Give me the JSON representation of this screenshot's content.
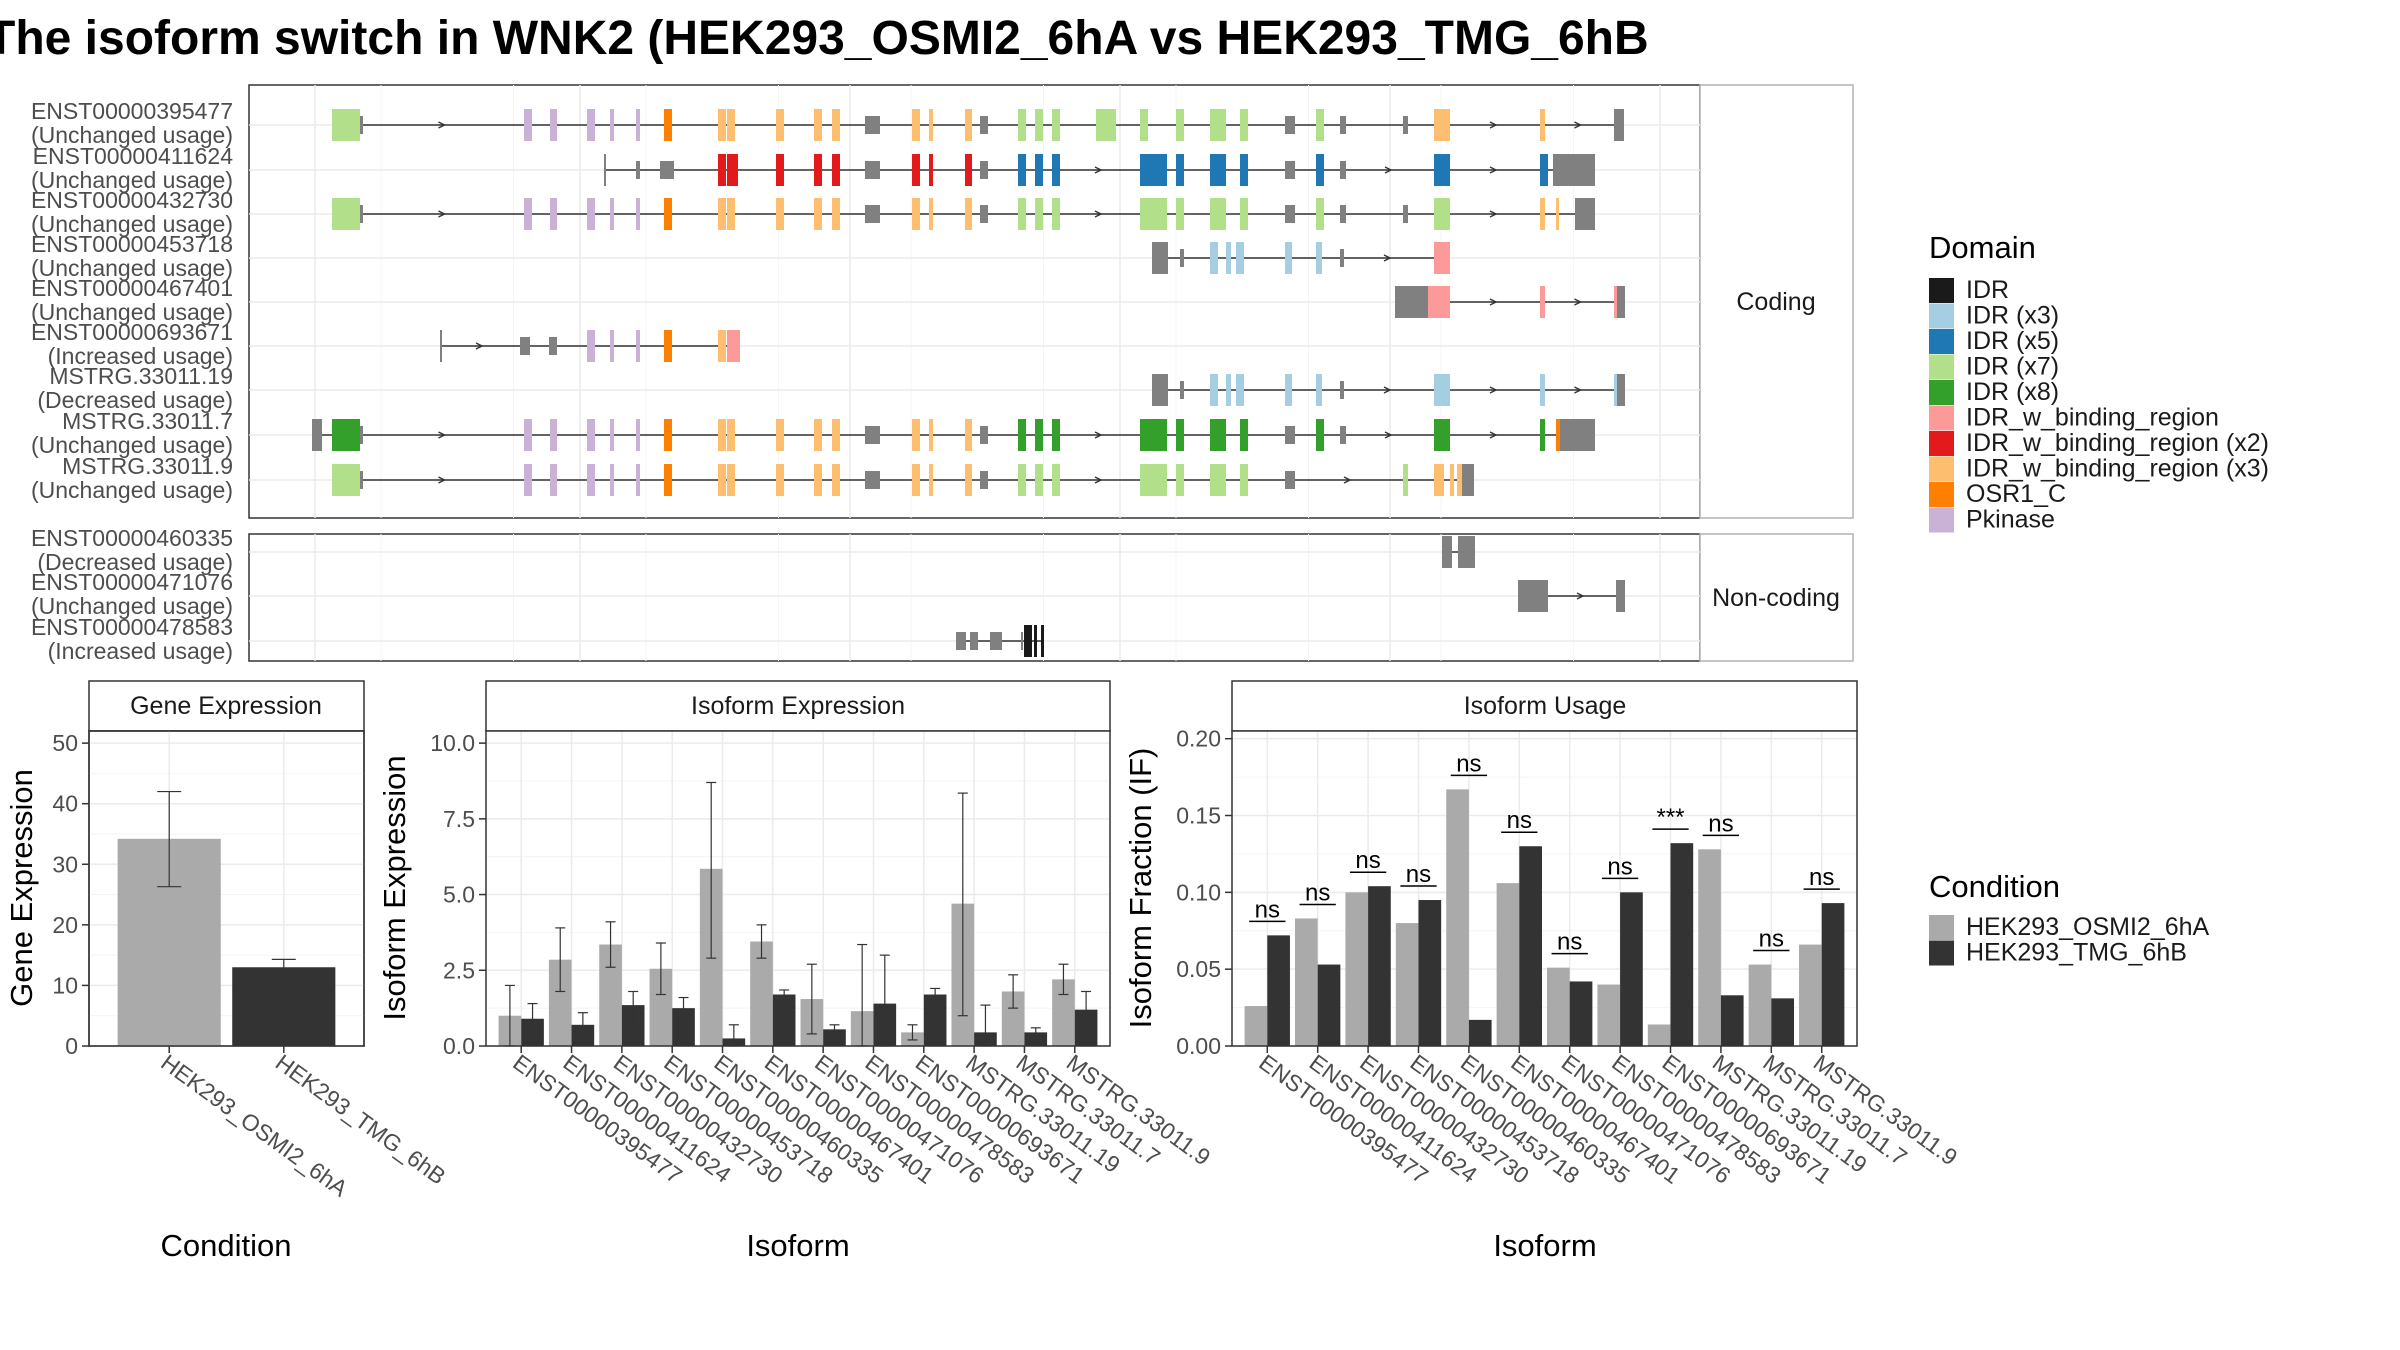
{
  "title": "The isoform switch in WNK2 (HEK293_OSMI2_6hA vs HEK293_TMG_6hB",
  "legends": {
    "domain_title": "Domain",
    "domains": [
      {
        "label": "IDR",
        "color": "#1a1a1a"
      },
      {
        "label": "IDR (x3)",
        "color": "#a6cee3"
      },
      {
        "label": "IDR (x5)",
        "color": "#1f78b4"
      },
      {
        "label": "IDR (x7)",
        "color": "#b2df8a"
      },
      {
        "label": "IDR (x8)",
        "color": "#33a02c"
      },
      {
        "label": "IDR_w_binding_region",
        "color": "#fb9a99"
      },
      {
        "label": "IDR_w_binding_region (x2)",
        "color": "#e31a1c"
      },
      {
        "label": "IDR_w_binding_region (x3)",
        "color": "#fdbf6f"
      },
      {
        "label": "OSR1_C",
        "color": "#ff7f00"
      },
      {
        "label": "Pkinase",
        "color": "#cab2d6"
      }
    ],
    "condition_title": "Condition",
    "conditions": [
      {
        "label": "HEK293_OSMI2_6hA",
        "color": "#aaaaaa"
      },
      {
        "label": "HEK293_TMG_6hB",
        "color": "#333333"
      }
    ]
  },
  "isoform_structure": {
    "coding_strip": "Coding",
    "noncoding_strip": "Non-coding",
    "coding": [
      {
        "id": "ENST00000395477",
        "usage": "(Unchanged usage)"
      },
      {
        "id": "ENST00000411624",
        "usage": "(Unchanged usage)"
      },
      {
        "id": "ENST00000432730",
        "usage": "(Unchanged usage)"
      },
      {
        "id": "ENST00000453718",
        "usage": "(Unchanged usage)"
      },
      {
        "id": "ENST00000467401",
        "usage": "(Unchanged usage)"
      },
      {
        "id": "ENST00000693671",
        "usage": "(Increased usage)"
      },
      {
        "id": "MSTRG.33011.19",
        "usage": "(Decreased usage)"
      },
      {
        "id": "MSTRG.33011.7",
        "usage": "(Unchanged usage)"
      },
      {
        "id": "MSTRG.33011.9",
        "usage": "(Unchanged usage)"
      }
    ],
    "noncoding": [
      {
        "id": "ENST00000460335",
        "usage": "(Decreased usage)"
      },
      {
        "id": "ENST00000471076",
        "usage": "(Unchanged usage)"
      },
      {
        "id": "ENST00000478583",
        "usage": "(Increased usage)"
      }
    ]
  },
  "chart_data": [
    {
      "type": "bar",
      "title": "Gene Expression",
      "xlabel": "Condition",
      "ylabel": "Gene Expression",
      "ylim": [
        0,
        52
      ],
      "yticks": [
        "0",
        "10",
        "20",
        "30",
        "40",
        "50"
      ],
      "categories": [
        "HEK293_OSMI2_6hA",
        "HEK293_TMG_6hB"
      ],
      "values": [
        34.2,
        13.0
      ],
      "errors": [
        [
          26.3,
          42.0
        ],
        [
          11.8,
          14.3
        ]
      ]
    },
    {
      "type": "bar",
      "title": "Isoform Expression",
      "xlabel": "Isoform",
      "ylabel": "Isoform Expression",
      "ylim": [
        0,
        10.4
      ],
      "yticks": [
        "0.0",
        "2.5",
        "5.0",
        "7.5",
        "10.0"
      ],
      "categories": [
        "ENST00000395477",
        "ENST00000411624",
        "ENST00000432730",
        "ENST00000453718",
        "ENST00000460335",
        "ENST00000467401",
        "ENST00000471076",
        "ENST00000478583",
        "ENST00000693671",
        "MSTRG.33011.19",
        "MSTRG.33011.7",
        "MSTRG.33011.9"
      ],
      "series": [
        {
          "name": "HEK293_OSMI2_6hA",
          "values": [
            1.0,
            2.85,
            3.35,
            2.55,
            5.85,
            3.45,
            1.55,
            1.15,
            0.45,
            4.7,
            1.8,
            2.2
          ],
          "errors": [
            [
              0.0,
              2.0
            ],
            [
              1.8,
              3.9
            ],
            [
              2.6,
              4.1
            ],
            [
              1.7,
              3.4
            ],
            [
              2.9,
              8.7
            ],
            [
              2.9,
              4.0
            ],
            [
              0.4,
              2.7
            ],
            [
              0.0,
              3.35
            ],
            [
              0.2,
              0.7
            ],
            [
              1.0,
              8.35
            ],
            [
              1.25,
              2.35
            ],
            [
              1.7,
              2.7
            ]
          ]
        },
        {
          "name": "HEK293_TMG_6hB",
          "values": [
            0.9,
            0.7,
            1.35,
            1.25,
            0.25,
            1.7,
            0.55,
            1.4,
            1.7,
            0.45,
            0.45,
            1.2
          ],
          "errors": [
            [
              0.4,
              1.4
            ],
            [
              0.3,
              1.1
            ],
            [
              0.6,
              1.8
            ],
            [
              0.9,
              1.6
            ],
            [
              0.0,
              0.7
            ],
            [
              1.55,
              1.85
            ],
            [
              0.4,
              0.7
            ],
            [
              0.0,
              3.0
            ],
            [
              1.5,
              1.9
            ],
            [
              0.0,
              1.35
            ],
            [
              0.3,
              0.6
            ],
            [
              0.6,
              1.8
            ]
          ]
        }
      ]
    },
    {
      "type": "bar",
      "title": "Isoform Usage",
      "xlabel": "Isoform",
      "ylabel": "Isoform Fraction (IF)",
      "ylim": [
        0,
        0.205
      ],
      "yticks": [
        "0.00",
        "0.05",
        "0.10",
        "0.15",
        "0.20"
      ],
      "categories": [
        "ENST00000395477",
        "ENST00000411624",
        "ENST00000432730",
        "ENST00000453718",
        "ENST00000460335",
        "ENST00000467401",
        "ENST00000471076",
        "ENST00000478583",
        "ENST00000693671",
        "MSTRG.33011.19",
        "MSTRG.33011.7",
        "MSTRG.33011.9"
      ],
      "series": [
        {
          "name": "HEK293_OSMI2_6hA",
          "values": [
            0.026,
            0.083,
            0.1,
            0.08,
            0.167,
            0.106,
            0.051,
            0.04,
            0.014,
            0.128,
            0.053,
            0.066
          ]
        },
        {
          "name": "HEK293_TMG_6hB",
          "values": [
            0.072,
            0.053,
            0.104,
            0.095,
            0.017,
            0.13,
            0.042,
            0.1,
            0.132,
            0.033,
            0.031,
            0.093
          ]
        }
      ],
      "significance": [
        "ns",
        "ns",
        "ns",
        "ns",
        "ns",
        "ns",
        "ns",
        "ns",
        "***",
        "ns",
        "ns",
        "ns"
      ]
    }
  ]
}
